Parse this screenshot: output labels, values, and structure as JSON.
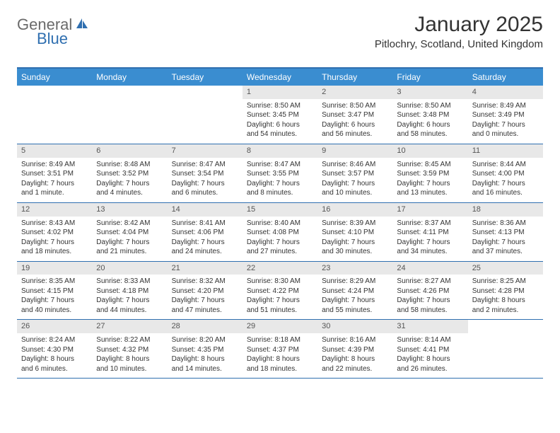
{
  "logo": {
    "general": "General",
    "blue": "Blue"
  },
  "title": "January 2025",
  "location": "Pitlochry, Scotland, United Kingdom",
  "colors": {
    "header_bg": "#3a8dd0",
    "border": "#2f6fb0",
    "daynum_bg": "#e8e8e8",
    "text": "#333333",
    "logo_gray": "#6a6a6a",
    "logo_blue": "#2f6fb0"
  },
  "day_headers": [
    "Sunday",
    "Monday",
    "Tuesday",
    "Wednesday",
    "Thursday",
    "Friday",
    "Saturday"
  ],
  "weeks": [
    [
      {
        "empty": true
      },
      {
        "empty": true
      },
      {
        "empty": true
      },
      {
        "num": "1",
        "sunrise": "Sunrise: 8:50 AM",
        "sunset": "Sunset: 3:45 PM",
        "daylight": "Daylight: 6 hours and 54 minutes."
      },
      {
        "num": "2",
        "sunrise": "Sunrise: 8:50 AM",
        "sunset": "Sunset: 3:47 PM",
        "daylight": "Daylight: 6 hours and 56 minutes."
      },
      {
        "num": "3",
        "sunrise": "Sunrise: 8:50 AM",
        "sunset": "Sunset: 3:48 PM",
        "daylight": "Daylight: 6 hours and 58 minutes."
      },
      {
        "num": "4",
        "sunrise": "Sunrise: 8:49 AM",
        "sunset": "Sunset: 3:49 PM",
        "daylight": "Daylight: 7 hours and 0 minutes."
      }
    ],
    [
      {
        "num": "5",
        "sunrise": "Sunrise: 8:49 AM",
        "sunset": "Sunset: 3:51 PM",
        "daylight": "Daylight: 7 hours and 1 minute."
      },
      {
        "num": "6",
        "sunrise": "Sunrise: 8:48 AM",
        "sunset": "Sunset: 3:52 PM",
        "daylight": "Daylight: 7 hours and 4 minutes."
      },
      {
        "num": "7",
        "sunrise": "Sunrise: 8:47 AM",
        "sunset": "Sunset: 3:54 PM",
        "daylight": "Daylight: 7 hours and 6 minutes."
      },
      {
        "num": "8",
        "sunrise": "Sunrise: 8:47 AM",
        "sunset": "Sunset: 3:55 PM",
        "daylight": "Daylight: 7 hours and 8 minutes."
      },
      {
        "num": "9",
        "sunrise": "Sunrise: 8:46 AM",
        "sunset": "Sunset: 3:57 PM",
        "daylight": "Daylight: 7 hours and 10 minutes."
      },
      {
        "num": "10",
        "sunrise": "Sunrise: 8:45 AM",
        "sunset": "Sunset: 3:59 PM",
        "daylight": "Daylight: 7 hours and 13 minutes."
      },
      {
        "num": "11",
        "sunrise": "Sunrise: 8:44 AM",
        "sunset": "Sunset: 4:00 PM",
        "daylight": "Daylight: 7 hours and 16 minutes."
      }
    ],
    [
      {
        "num": "12",
        "sunrise": "Sunrise: 8:43 AM",
        "sunset": "Sunset: 4:02 PM",
        "daylight": "Daylight: 7 hours and 18 minutes."
      },
      {
        "num": "13",
        "sunrise": "Sunrise: 8:42 AM",
        "sunset": "Sunset: 4:04 PM",
        "daylight": "Daylight: 7 hours and 21 minutes."
      },
      {
        "num": "14",
        "sunrise": "Sunrise: 8:41 AM",
        "sunset": "Sunset: 4:06 PM",
        "daylight": "Daylight: 7 hours and 24 minutes."
      },
      {
        "num": "15",
        "sunrise": "Sunrise: 8:40 AM",
        "sunset": "Sunset: 4:08 PM",
        "daylight": "Daylight: 7 hours and 27 minutes."
      },
      {
        "num": "16",
        "sunrise": "Sunrise: 8:39 AM",
        "sunset": "Sunset: 4:10 PM",
        "daylight": "Daylight: 7 hours and 30 minutes."
      },
      {
        "num": "17",
        "sunrise": "Sunrise: 8:37 AM",
        "sunset": "Sunset: 4:11 PM",
        "daylight": "Daylight: 7 hours and 34 minutes."
      },
      {
        "num": "18",
        "sunrise": "Sunrise: 8:36 AM",
        "sunset": "Sunset: 4:13 PM",
        "daylight": "Daylight: 7 hours and 37 minutes."
      }
    ],
    [
      {
        "num": "19",
        "sunrise": "Sunrise: 8:35 AM",
        "sunset": "Sunset: 4:15 PM",
        "daylight": "Daylight: 7 hours and 40 minutes."
      },
      {
        "num": "20",
        "sunrise": "Sunrise: 8:33 AM",
        "sunset": "Sunset: 4:18 PM",
        "daylight": "Daylight: 7 hours and 44 minutes."
      },
      {
        "num": "21",
        "sunrise": "Sunrise: 8:32 AM",
        "sunset": "Sunset: 4:20 PM",
        "daylight": "Daylight: 7 hours and 47 minutes."
      },
      {
        "num": "22",
        "sunrise": "Sunrise: 8:30 AM",
        "sunset": "Sunset: 4:22 PM",
        "daylight": "Daylight: 7 hours and 51 minutes."
      },
      {
        "num": "23",
        "sunrise": "Sunrise: 8:29 AM",
        "sunset": "Sunset: 4:24 PM",
        "daylight": "Daylight: 7 hours and 55 minutes."
      },
      {
        "num": "24",
        "sunrise": "Sunrise: 8:27 AM",
        "sunset": "Sunset: 4:26 PM",
        "daylight": "Daylight: 7 hours and 58 minutes."
      },
      {
        "num": "25",
        "sunrise": "Sunrise: 8:25 AM",
        "sunset": "Sunset: 4:28 PM",
        "daylight": "Daylight: 8 hours and 2 minutes."
      }
    ],
    [
      {
        "num": "26",
        "sunrise": "Sunrise: 8:24 AM",
        "sunset": "Sunset: 4:30 PM",
        "daylight": "Daylight: 8 hours and 6 minutes."
      },
      {
        "num": "27",
        "sunrise": "Sunrise: 8:22 AM",
        "sunset": "Sunset: 4:32 PM",
        "daylight": "Daylight: 8 hours and 10 minutes."
      },
      {
        "num": "28",
        "sunrise": "Sunrise: 8:20 AM",
        "sunset": "Sunset: 4:35 PM",
        "daylight": "Daylight: 8 hours and 14 minutes."
      },
      {
        "num": "29",
        "sunrise": "Sunrise: 8:18 AM",
        "sunset": "Sunset: 4:37 PM",
        "daylight": "Daylight: 8 hours and 18 minutes."
      },
      {
        "num": "30",
        "sunrise": "Sunrise: 8:16 AM",
        "sunset": "Sunset: 4:39 PM",
        "daylight": "Daylight: 8 hours and 22 minutes."
      },
      {
        "num": "31",
        "sunrise": "Sunrise: 8:14 AM",
        "sunset": "Sunset: 4:41 PM",
        "daylight": "Daylight: 8 hours and 26 minutes."
      },
      {
        "empty": true
      }
    ]
  ]
}
